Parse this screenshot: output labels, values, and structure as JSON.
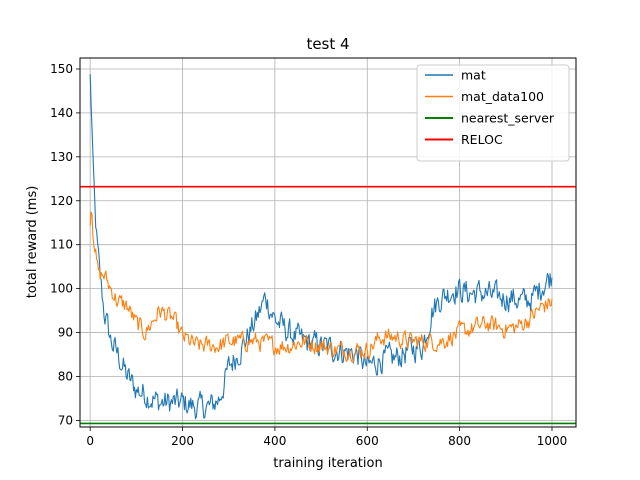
{
  "chart_data": {
    "type": "line",
    "title": "test 4",
    "xlabel": "training iteration",
    "ylabel": "total reward (ms)",
    "xlim": [
      -22,
      1052
    ],
    "ylim": [
      68.5,
      152.5
    ],
    "xticks": [
      0,
      200,
      400,
      600,
      800,
      1000
    ],
    "yticks": [
      70,
      80,
      90,
      100,
      110,
      120,
      130,
      140,
      150
    ],
    "grid": true,
    "legend_position": "top-right",
    "series": [
      {
        "name": "mat",
        "color": "#1f77b4",
        "style": "noisy-line",
        "noise": 2.6,
        "x": [
          0,
          3,
          6,
          10,
          15,
          20,
          30,
          45,
          60,
          80,
          100,
          120,
          150,
          180,
          200,
          230,
          260,
          280,
          300,
          330,
          360,
          380,
          400,
          430,
          460,
          500,
          540,
          580,
          600,
          630,
          660,
          690,
          720,
          740,
          760,
          790,
          820,
          850,
          880,
          910,
          940,
          960,
          980,
          1000
        ],
        "values": [
          148,
          140,
          128,
          118,
          110,
          104,
          95,
          88,
          85,
          80,
          77,
          76,
          74,
          74,
          74,
          73,
          73,
          75,
          82,
          87,
          93,
          98,
          93,
          90,
          88,
          87,
          86,
          85,
          82,
          84,
          84,
          86,
          87,
          95,
          98,
          100,
          99,
          99,
          98,
          98,
          97,
          98,
          101,
          103
        ]
      },
      {
        "name": "mat_data100",
        "color": "#ff7f0e",
        "style": "noisy-line",
        "noise": 1.8,
        "x": [
          0,
          3,
          6,
          10,
          15,
          20,
          30,
          45,
          60,
          80,
          100,
          120,
          150,
          180,
          200,
          230,
          260,
          280,
          300,
          330,
          360,
          400,
          430,
          460,
          500,
          540,
          580,
          600,
          630,
          660,
          690,
          720,
          760,
          800,
          830,
          860,
          890,
          920,
          950,
          980,
          1000
        ],
        "values": [
          116,
          120,
          114,
          110,
          105,
          103,
          103,
          100,
          97,
          96,
          92,
          90,
          95,
          93,
          89,
          87,
          87,
          87,
          88,
          88,
          88,
          87,
          87,
          88,
          87,
          86,
          86,
          86,
          89,
          89,
          88,
          88,
          88,
          90,
          91,
          92,
          91,
          91,
          93,
          96,
          97
        ]
      },
      {
        "name": "nearest_server",
        "color": "#008000",
        "style": "hline",
        "value": 69.3
      },
      {
        "name": "RELOC",
        "color": "#ff0000",
        "style": "hline",
        "value": 123.2
      }
    ]
  }
}
